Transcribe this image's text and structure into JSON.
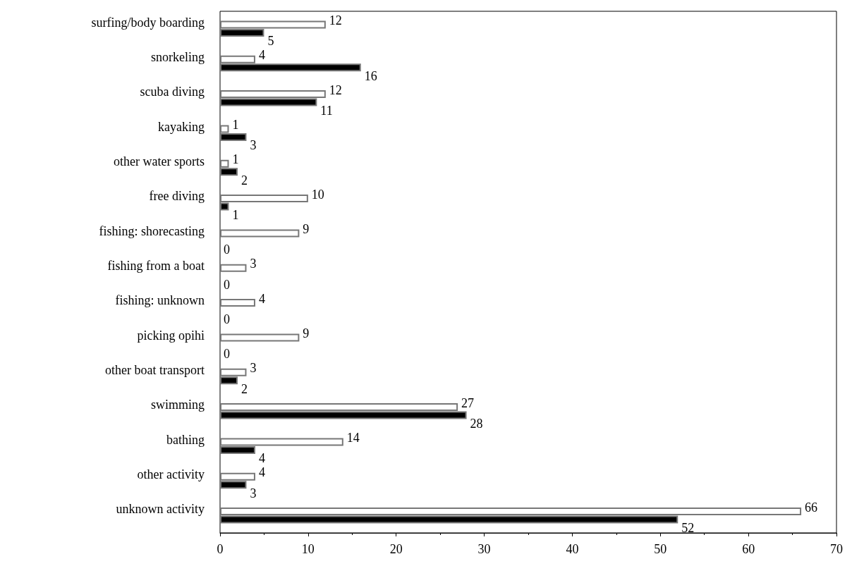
{
  "chart_data": {
    "type": "bar",
    "orientation": "horizontal",
    "categories": [
      "surfing/body boarding",
      "snorkeling",
      "scuba diving",
      "kayaking",
      "other water sports",
      "free diving",
      "fishing: shorecasting",
      "fishing from a boat",
      "fishing: unknown",
      "picking opihi",
      "other boat transport",
      "swimming",
      "bathing",
      "other activity",
      "unknown activity"
    ],
    "series": [
      {
        "color": "#ffffff",
        "values": [
          12,
          4,
          12,
          1,
          1,
          10,
          9,
          3,
          4,
          9,
          3,
          27,
          14,
          4,
          66
        ]
      },
      {
        "color": "#000000",
        "values": [
          5,
          16,
          11,
          3,
          2,
          1,
          0,
          0,
          0,
          0,
          2,
          28,
          4,
          3,
          52
        ]
      }
    ],
    "xlim": [
      0,
      70
    ],
    "xticks": [
      0,
      10,
      20,
      30,
      40,
      50,
      60,
      70
    ],
    "data_labels": true,
    "grid": false
  }
}
